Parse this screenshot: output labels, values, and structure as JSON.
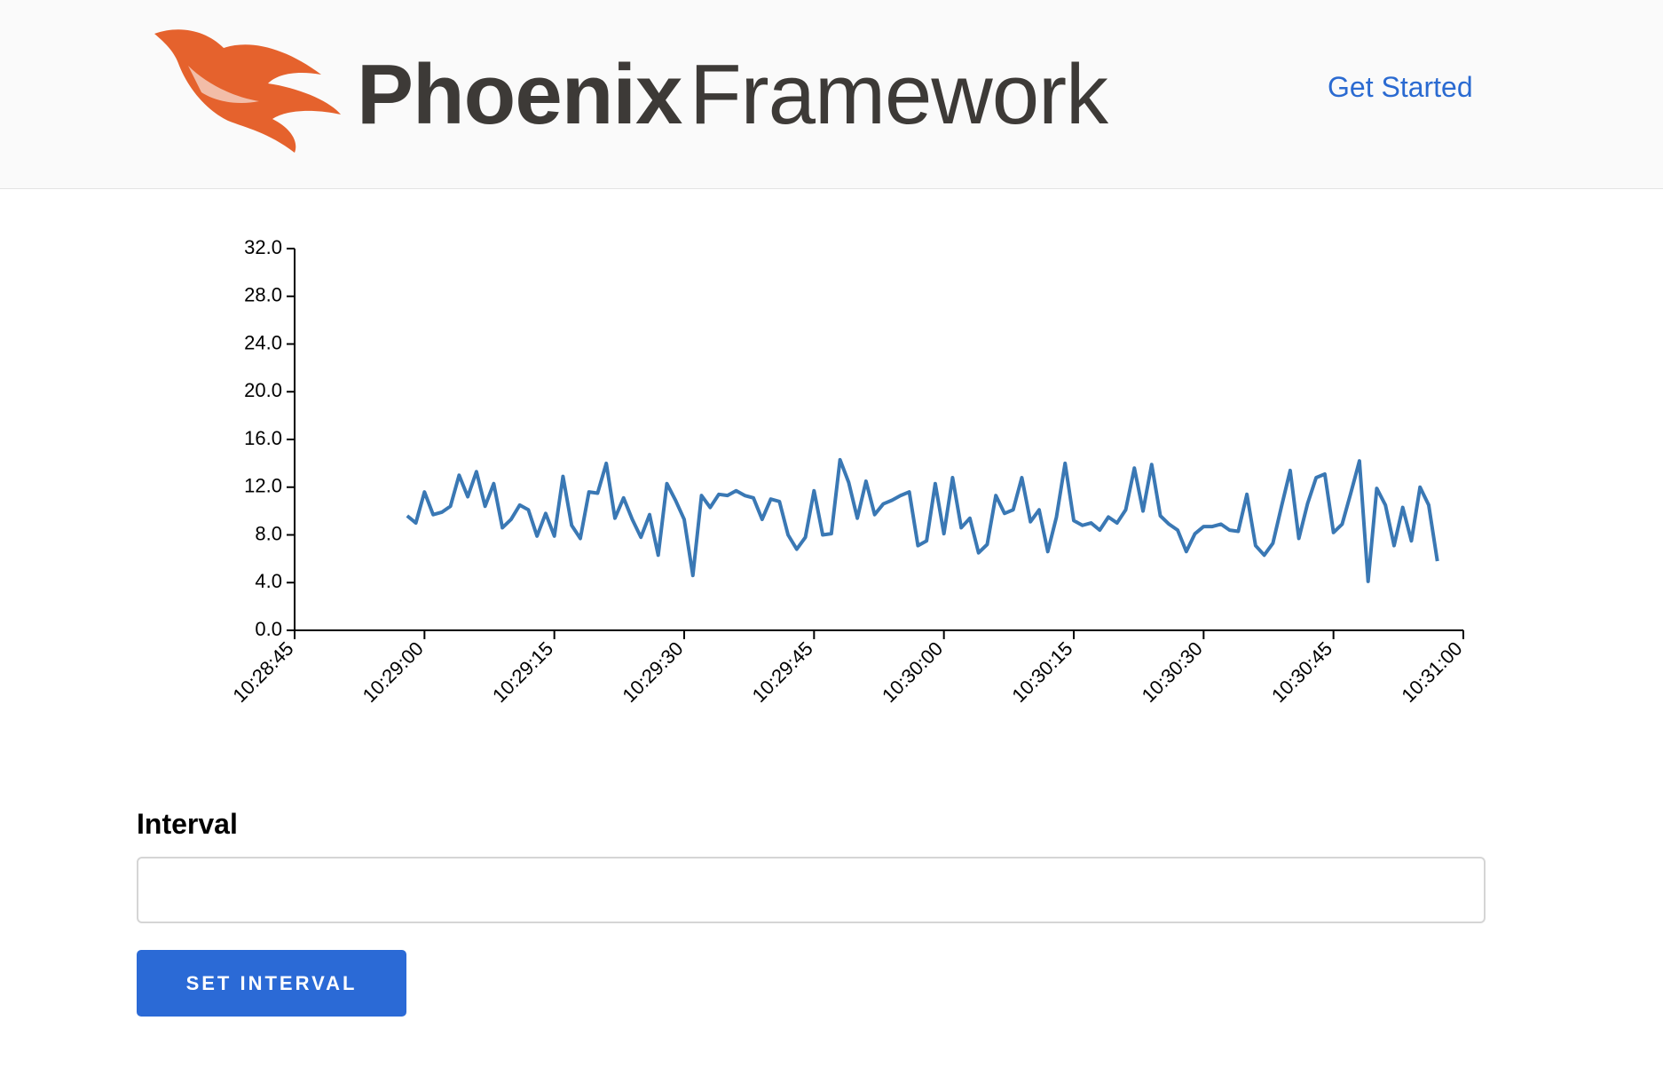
{
  "header": {
    "logo": {
      "bold": "Phoenix",
      "light": "Framework"
    },
    "nav": {
      "link": "Get Started"
    }
  },
  "chart_data": {
    "type": "line",
    "x": [
      "10:28:58",
      "10:28:59",
      "10:29:00",
      "10:29:01",
      "10:29:02",
      "10:29:03",
      "10:29:04",
      "10:29:05",
      "10:29:06",
      "10:29:07",
      "10:29:08",
      "10:29:09",
      "10:29:10",
      "10:29:11",
      "10:29:12",
      "10:29:13",
      "10:29:14",
      "10:29:15",
      "10:29:16",
      "10:29:17",
      "10:29:18",
      "10:29:19",
      "10:29:20",
      "10:29:21",
      "10:29:22",
      "10:29:23",
      "10:29:24",
      "10:29:25",
      "10:29:26",
      "10:29:27",
      "10:29:28",
      "10:29:29",
      "10:29:30",
      "10:29:31",
      "10:29:32",
      "10:29:33",
      "10:29:34",
      "10:29:35",
      "10:29:36",
      "10:29:37",
      "10:29:38",
      "10:29:39",
      "10:29:40",
      "10:29:41",
      "10:29:42",
      "10:29:43",
      "10:29:44",
      "10:29:45",
      "10:29:46",
      "10:29:47",
      "10:29:48",
      "10:29:49",
      "10:29:50",
      "10:29:51",
      "10:29:52",
      "10:29:53",
      "10:29:54",
      "10:29:55",
      "10:29:56",
      "10:29:57",
      "10:29:58",
      "10:29:59",
      "10:30:00",
      "10:30:01",
      "10:30:02",
      "10:30:03",
      "10:30:04",
      "10:30:05",
      "10:30:06",
      "10:30:07",
      "10:30:08",
      "10:30:09",
      "10:30:10",
      "10:30:11",
      "10:30:12",
      "10:30:13",
      "10:30:14",
      "10:30:15",
      "10:30:16",
      "10:30:17",
      "10:30:18",
      "10:30:19",
      "10:30:20",
      "10:30:21",
      "10:30:22",
      "10:30:23",
      "10:30:24",
      "10:30:25",
      "10:30:26",
      "10:30:27",
      "10:30:28",
      "10:30:29",
      "10:30:30",
      "10:30:31",
      "10:30:32",
      "10:30:33",
      "10:30:34",
      "10:30:35",
      "10:30:36",
      "10:30:37",
      "10:30:38",
      "10:30:39",
      "10:30:40",
      "10:30:41",
      "10:30:42",
      "10:30:43",
      "10:30:44",
      "10:30:45",
      "10:30:46",
      "10:30:47",
      "10:30:48",
      "10:30:49",
      "10:30:50",
      "10:30:51",
      "10:30:52",
      "10:30:53",
      "10:30:54",
      "10:30:55",
      "10:30:56",
      "10:30:57"
    ],
    "series": [
      {
        "color": "#3a78b4",
        "values": [
          9.6,
          9.0,
          11.6,
          9.7,
          9.9,
          10.4,
          13.0,
          11.2,
          13.3,
          10.4,
          12.3,
          8.6,
          9.3,
          10.5,
          10.1,
          7.9,
          9.8,
          7.9,
          12.9,
          8.8,
          7.7,
          11.6,
          11.5,
          14.0,
          9.4,
          11.1,
          9.3,
          7.8,
          9.7,
          6.3,
          12.3,
          10.9,
          9.3,
          4.6,
          11.3,
          10.3,
          11.4,
          11.3,
          11.7,
          11.3,
          11.1,
          9.3,
          11.0,
          10.8,
          8.0,
          6.8,
          7.8,
          11.7,
          8.0,
          8.1,
          14.3,
          12.4,
          9.4,
          12.5,
          9.7,
          10.6,
          10.9,
          11.3,
          11.6,
          7.1,
          7.5,
          12.3,
          8.1,
          12.8,
          8.6,
          9.4,
          6.5,
          7.2,
          11.3,
          9.8,
          10.1,
          12.8,
          9.1,
          10.1,
          6.6,
          9.5,
          14.0,
          9.2,
          8.8,
          9.0,
          8.4,
          9.5,
          9.0,
          10.1,
          13.6,
          10.0,
          13.9,
          9.6,
          8.9,
          8.4,
          6.6,
          8.1,
          8.7,
          8.7,
          8.9,
          8.4,
          8.3,
          11.4,
          7.1,
          6.3,
          7.3,
          10.4,
          13.4,
          7.7,
          10.6,
          12.8,
          13.1,
          8.2,
          8.9,
          11.5,
          14.2,
          4.1,
          11.9,
          10.5,
          7.1,
          10.3,
          7.5,
          12.0,
          10.5,
          5.8
        ]
      }
    ],
    "xlim": [
      "10:28:45",
      "10:31:00"
    ],
    "xticks": [
      "10:28:45",
      "10:29:00",
      "10:29:15",
      "10:29:30",
      "10:29:45",
      "10:30:00",
      "10:30:15",
      "10:30:30",
      "10:30:45",
      "10:31:00"
    ],
    "ylim": [
      0,
      32
    ],
    "yticks": [
      {
        "value": 0,
        "label": "0.0"
      },
      {
        "value": 4,
        "label": "4.0"
      },
      {
        "value": 8,
        "label": "8.0"
      },
      {
        "value": 12,
        "label": "12.0"
      },
      {
        "value": 16,
        "label": "16.0"
      },
      {
        "value": 20,
        "label": "20.0"
      },
      {
        "value": 24,
        "label": "24.0"
      },
      {
        "value": 28,
        "label": "28.0"
      },
      {
        "value": 32,
        "label": "32.0"
      }
    ]
  },
  "form": {
    "label": "Interval",
    "button": "SET INTERVAL"
  }
}
